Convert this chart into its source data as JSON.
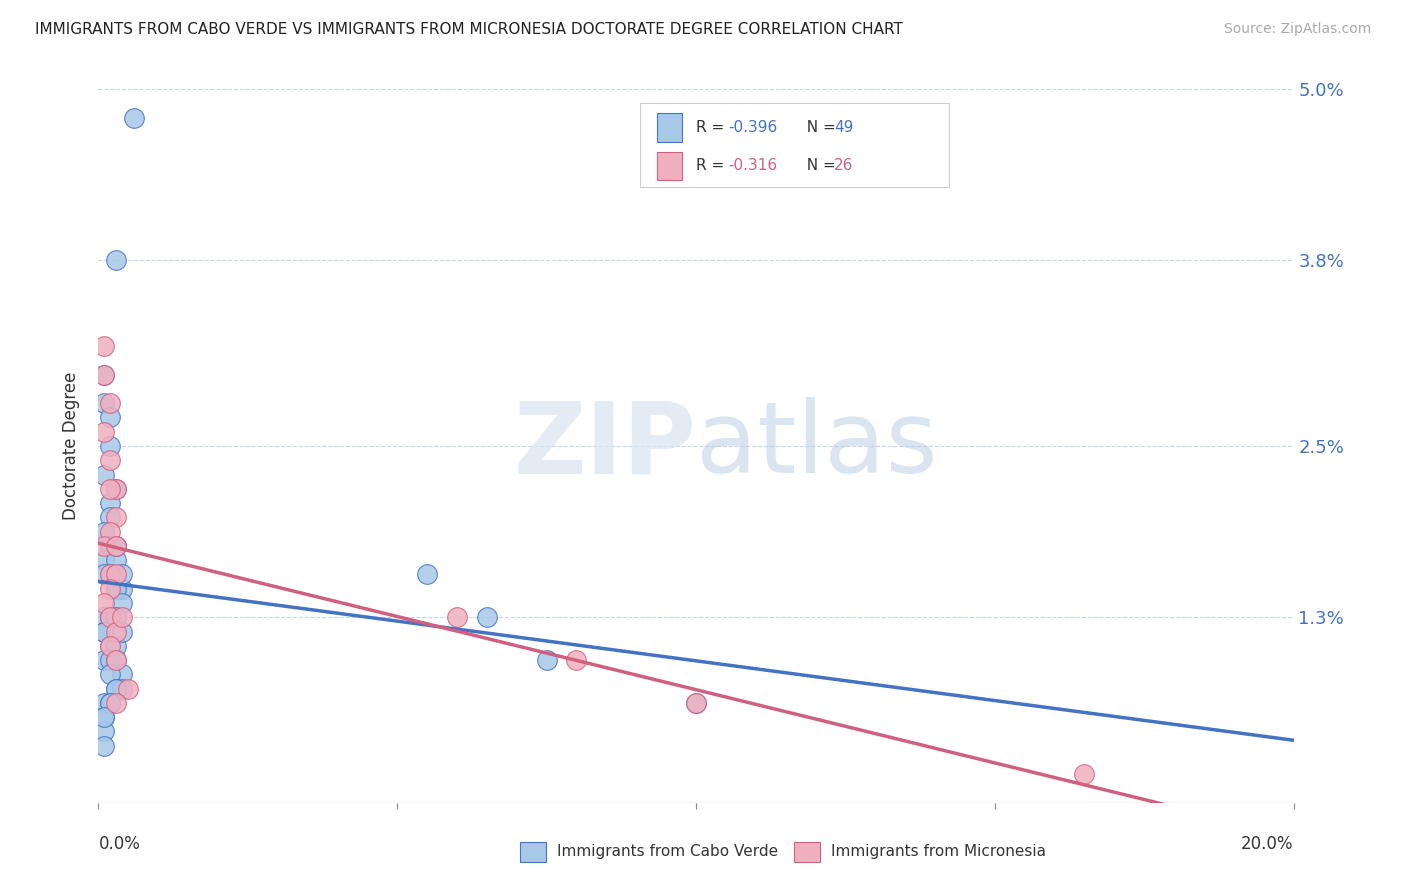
{
  "title": "IMMIGRANTS FROM CABO VERDE VS IMMIGRANTS FROM MICRONESIA DOCTORATE DEGREE CORRELATION CHART",
  "source": "Source: ZipAtlas.com",
  "ylabel": "Doctorate Degree",
  "x_min": 0.0,
  "x_max": 0.2,
  "y_min": 0.0,
  "y_max": 0.05,
  "cabo_verde_R": -0.396,
  "cabo_verde_N": 49,
  "micronesia_R": -0.316,
  "micronesia_N": 26,
  "cabo_verde_color": "#a8c8e8",
  "micronesia_color": "#f0b0c0",
  "cabo_verde_line_color": "#4472c4",
  "micronesia_line_color": "#d06080",
  "watermark_zip": "ZIP",
  "watermark_atlas": "atlas",
  "cabo_verde_x": [
    0.006,
    0.003,
    0.001,
    0.001,
    0.002,
    0.002,
    0.001,
    0.003,
    0.002,
    0.002,
    0.001,
    0.003,
    0.002,
    0.001,
    0.003,
    0.002,
    0.001,
    0.004,
    0.003,
    0.004,
    0.001,
    0.002,
    0.001,
    0.001,
    0.002,
    0.003,
    0.001,
    0.002,
    0.003,
    0.004,
    0.002,
    0.003,
    0.004,
    0.001,
    0.002,
    0.001,
    0.001,
    0.001,
    0.003,
    0.004,
    0.003,
    0.004,
    0.003,
    0.002,
    0.001,
    0.055,
    0.065,
    0.075,
    0.1
  ],
  "cabo_verde_y": [
    0.048,
    0.038,
    0.03,
    0.028,
    0.027,
    0.025,
    0.023,
    0.022,
    0.021,
    0.02,
    0.019,
    0.018,
    0.018,
    0.017,
    0.017,
    0.016,
    0.016,
    0.015,
    0.015,
    0.014,
    0.013,
    0.013,
    0.012,
    0.012,
    0.011,
    0.011,
    0.01,
    0.01,
    0.01,
    0.009,
    0.009,
    0.008,
    0.008,
    0.007,
    0.007,
    0.006,
    0.005,
    0.004,
    0.018,
    0.016,
    0.013,
    0.012,
    0.008,
    0.007,
    0.006,
    0.016,
    0.013,
    0.01,
    0.007
  ],
  "micronesia_x": [
    0.001,
    0.001,
    0.002,
    0.001,
    0.002,
    0.003,
    0.002,
    0.003,
    0.002,
    0.001,
    0.003,
    0.002,
    0.003,
    0.002,
    0.001,
    0.002,
    0.003,
    0.002,
    0.004,
    0.003,
    0.005,
    0.003,
    0.06,
    0.08,
    0.165,
    0.1
  ],
  "micronesia_y": [
    0.032,
    0.03,
    0.028,
    0.026,
    0.024,
    0.022,
    0.022,
    0.02,
    0.019,
    0.018,
    0.018,
    0.016,
    0.016,
    0.015,
    0.014,
    0.013,
    0.012,
    0.011,
    0.013,
    0.01,
    0.008,
    0.007,
    0.013,
    0.01,
    0.002,
    0.007
  ]
}
